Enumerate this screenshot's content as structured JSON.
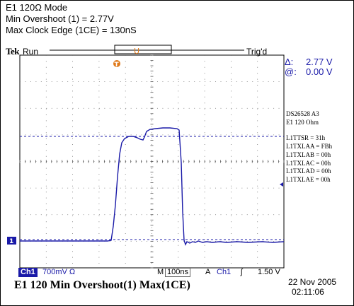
{
  "caption": {
    "line1": "E1 120Ω Mode",
    "line2": "Min Overshoot (1) = 2.77V",
    "line3": "Max Clock Edge (1CE) = 130nS"
  },
  "header": {
    "brand": "Tek",
    "run_state": "Run",
    "trigger_status": "Trig'd"
  },
  "markers": {
    "trigger_marker": "T",
    "channel_marker": "1"
  },
  "measurements": [
    {
      "symbol": "Δ:",
      "value": "2.77 V"
    },
    {
      "symbol": "@:",
      "value": "0.00 V"
    }
  ],
  "register_panel": {
    "device": "DS26528 A3",
    "mode": "E1 120 Ohm",
    "registers": [
      "L1TTSR = 31h",
      "L1TXLAA = FBh",
      "L1TXLAB = 00h",
      "L1TXLAC = 00h",
      "L1TXLAD = 00h",
      "L1TXLAE = 00h"
    ]
  },
  "bottom_bar": {
    "channel": "Ch1",
    "scale": "700mV Ω",
    "m_label": "M",
    "timebase": "100ns",
    "a_label": "A",
    "trigger_source": "Ch1",
    "trigger_slope": "ʃ",
    "trigger_level": "1.50 V"
  },
  "footer": {
    "title": "E1 120 Min Overshoot(1)  Max(1CE)",
    "date": "22 Nov 2005",
    "time": "02:11:06"
  },
  "colors": {
    "trace": "#1a1aa8",
    "trigger_marker": "#e07a1a",
    "cursor": "#1a1aa8"
  }
}
